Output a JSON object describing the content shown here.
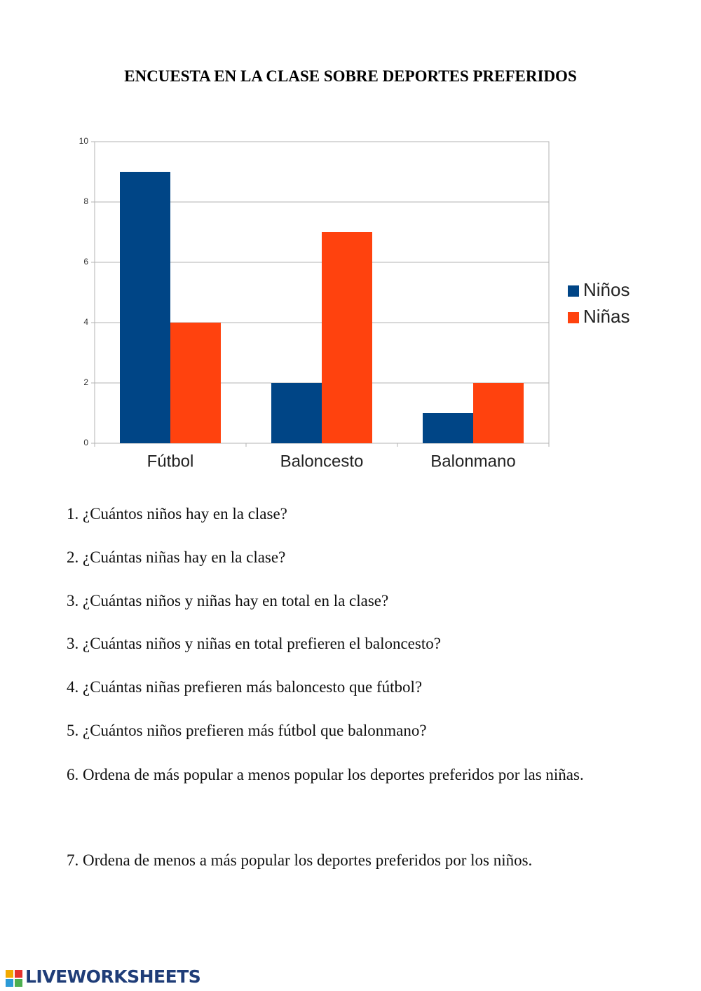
{
  "title": "ENCUESTA EN LA CLASE SOBRE DEPORTES PREFERIDOS",
  "chart_data": {
    "type": "bar",
    "categories": [
      "Fútbol",
      "Baloncesto",
      "Balonmano"
    ],
    "series": [
      {
        "name": "Niños",
        "color": "#004586",
        "values": [
          9,
          2,
          1
        ]
      },
      {
        "name": "Niñas",
        "color": "#ff420e",
        "values": [
          4,
          7,
          2
        ]
      }
    ],
    "ylim": [
      0,
      10
    ],
    "yticks": [
      0,
      2,
      4,
      6,
      8,
      10
    ],
    "grid": true,
    "legend": "right"
  },
  "questions": [
    "1. ¿Cuántos niños hay en la clase?",
    "2. ¿Cuántas niñas hay en la clase?",
    "3. ¿Cuántas niños y niñas hay en total en la clase?",
    "3. ¿Cuántas niños y niñas en total prefieren el baloncesto?",
    "4. ¿Cuántas niñas prefieren más baloncesto que fútbol?",
    "5. ¿Cuántos niños prefieren más fútbol que balonmano?",
    "6. Ordena de más popular a menos popular los deportes preferidos por las niñas.",
    "7. Ordena de menos a más popular los deportes preferidos por los niños."
  ],
  "footer": "LIVEWORKSHEETS"
}
